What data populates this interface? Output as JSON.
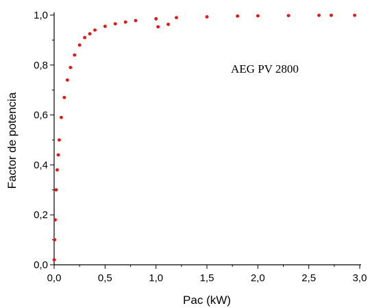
{
  "chart_data": {
    "type": "scatter",
    "title": "",
    "xlabel": "Pac (kW)",
    "ylabel": "Factor de potencia",
    "xlim": [
      0.0,
      3.0
    ],
    "ylim": [
      0.0,
      1.0
    ],
    "x_ticks": [
      "0,0",
      "0,5",
      "1,0",
      "1,5",
      "2,0",
      "2,5",
      "3,0"
    ],
    "y_ticks": [
      "0,0",
      "0,2",
      "0,4",
      "0,6",
      "0,8",
      "1,0"
    ],
    "grid": false,
    "annotation": "AEG PV 2800",
    "series": [
      {
        "color": "#ee1111",
        "points": [
          [
            0.0,
            0.02
          ],
          [
            0.005,
            0.1
          ],
          [
            0.01,
            0.18
          ],
          [
            0.02,
            0.3
          ],
          [
            0.03,
            0.38
          ],
          [
            0.04,
            0.44
          ],
          [
            0.05,
            0.5
          ],
          [
            0.07,
            0.59
          ],
          [
            0.1,
            0.67
          ],
          [
            0.13,
            0.74
          ],
          [
            0.16,
            0.79
          ],
          [
            0.2,
            0.84
          ],
          [
            0.25,
            0.88
          ],
          [
            0.3,
            0.91
          ],
          [
            0.35,
            0.925
          ],
          [
            0.4,
            0.94
          ],
          [
            0.5,
            0.955
          ],
          [
            0.6,
            0.965
          ],
          [
            0.7,
            0.972
          ],
          [
            0.8,
            0.978
          ],
          [
            1.0,
            0.985
          ],
          [
            1.2,
            0.99
          ],
          [
            1.5,
            0.993
          ],
          [
            1.8,
            0.996
          ],
          [
            2.0,
            0.997
          ],
          [
            2.3,
            0.998
          ],
          [
            2.6,
            0.999
          ],
          [
            2.72,
            0.999
          ],
          [
            2.95,
            0.999
          ],
          [
            1.02,
            0.953
          ],
          [
            1.12,
            0.963
          ]
        ]
      }
    ]
  }
}
